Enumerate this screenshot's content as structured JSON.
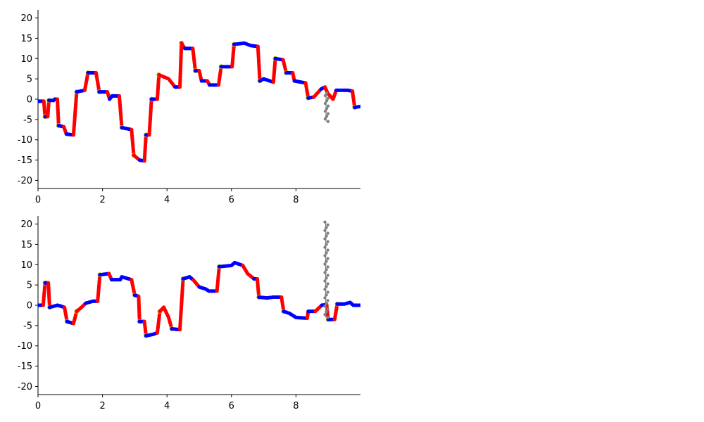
{
  "chart_data": [
    {
      "type": "scatter",
      "xlim": [
        0,
        10
      ],
      "ylim": [
        -22,
        22
      ],
      "x_ticks": [
        0,
        2,
        4,
        6,
        8
      ],
      "y_ticks": [
        -20,
        -15,
        -10,
        -5,
        0,
        5,
        10,
        15,
        20
      ],
      "grid": false,
      "series_colors": {
        "flat": "#0000ff",
        "transition": "#ff0000",
        "marker": "#bfbf00",
        "spike": "#808080"
      },
      "levels": [
        [
          0,
          -0.5
        ],
        [
          0.18,
          -0.5
        ],
        [
          0.22,
          -4.3
        ],
        [
          0.3,
          -4.3
        ],
        [
          0.34,
          -0.3
        ],
        [
          0.48,
          -0.3
        ],
        [
          0.52,
          0
        ],
        [
          0.6,
          0
        ],
        [
          0.64,
          -6.5
        ],
        [
          0.8,
          -6.8
        ],
        [
          0.88,
          -8.6
        ],
        [
          1.1,
          -8.8
        ],
        [
          1.2,
          1.8
        ],
        [
          1.45,
          2.2
        ],
        [
          1.55,
          6.5
        ],
        [
          1.8,
          6.5
        ],
        [
          1.9,
          1.8
        ],
        [
          2.15,
          1.8
        ],
        [
          2.22,
          0
        ],
        [
          2.3,
          0.8
        ],
        [
          2.52,
          0.8
        ],
        [
          2.6,
          -7
        ],
        [
          2.9,
          -7.5
        ],
        [
          2.97,
          -13.8
        ],
        [
          3.15,
          -15
        ],
        [
          3.3,
          -15.2
        ],
        [
          3.35,
          -8.8
        ],
        [
          3.45,
          -8.8
        ],
        [
          3.52,
          0
        ],
        [
          3.7,
          0
        ],
        [
          3.75,
          6
        ],
        [
          4.05,
          5
        ],
        [
          4.25,
          3
        ],
        [
          4.4,
          3
        ],
        [
          4.45,
          13.8
        ],
        [
          4.55,
          12.5
        ],
        [
          4.8,
          12.5
        ],
        [
          4.88,
          7
        ],
        [
          5.0,
          7
        ],
        [
          5.07,
          4.5
        ],
        [
          5.25,
          4.5
        ],
        [
          5.32,
          3.5
        ],
        [
          5.6,
          3.5
        ],
        [
          5.68,
          8
        ],
        [
          6.02,
          8
        ],
        [
          6.08,
          13.5
        ],
        [
          6.4,
          13.8
        ],
        [
          6.6,
          13.2
        ],
        [
          6.82,
          13
        ],
        [
          6.88,
          4.5
        ],
        [
          7.0,
          5
        ],
        [
          7.3,
          4.2
        ],
        [
          7.36,
          10
        ],
        [
          7.6,
          9.7
        ],
        [
          7.7,
          6.5
        ],
        [
          7.9,
          6.5
        ],
        [
          7.95,
          4.5
        ],
        [
          8.3,
          4
        ],
        [
          8.38,
          0.3
        ],
        [
          8.55,
          0.5
        ],
        [
          8.78,
          2.5
        ],
        [
          8.9,
          3
        ],
        [
          8.98,
          1.5
        ],
        [
          9.15,
          0
        ],
        [
          9.25,
          2.2
        ],
        [
          9.6,
          2.2
        ],
        [
          9.75,
          2
        ],
        [
          9.82,
          -2
        ],
        [
          10,
          -1.8
        ]
      ],
      "spike": {
        "x": 8.93,
        "y_min": -5.5,
        "y_max": 1.5
      }
    },
    {
      "type": "scatter",
      "xlim": [
        0,
        10
      ],
      "ylim": [
        -22,
        22
      ],
      "x_ticks": [
        0,
        2,
        4,
        6,
        8
      ],
      "y_ticks": [
        -20,
        -15,
        -10,
        -5,
        0,
        5,
        10,
        15,
        20
      ],
      "grid": false,
      "series_colors": {
        "flat": "#0000ff",
        "transition": "#ff0000",
        "marker": "#bfbf00",
        "spike": "#808080"
      },
      "levels": [
        [
          0,
          0
        ],
        [
          0.16,
          0
        ],
        [
          0.22,
          5.5
        ],
        [
          0.32,
          5.5
        ],
        [
          0.36,
          -0.5
        ],
        [
          0.6,
          0
        ],
        [
          0.7,
          -0.2
        ],
        [
          0.82,
          -0.5
        ],
        [
          0.9,
          -4
        ],
        [
          1.1,
          -4.5
        ],
        [
          1.2,
          -1.5
        ],
        [
          1.35,
          -0.5
        ],
        [
          1.48,
          0.5
        ],
        [
          1.7,
          1
        ],
        [
          1.85,
          1
        ],
        [
          1.92,
          7.5
        ],
        [
          2.2,
          7.8
        ],
        [
          2.28,
          6.3
        ],
        [
          2.55,
          6.3
        ],
        [
          2.6,
          7
        ],
        [
          2.9,
          6.3
        ],
        [
          3.0,
          2.5
        ],
        [
          3.12,
          2.2
        ],
        [
          3.15,
          -4
        ],
        [
          3.3,
          -4
        ],
        [
          3.35,
          -7.5
        ],
        [
          3.55,
          -7.2
        ],
        [
          3.7,
          -6.8
        ],
        [
          3.78,
          -1.5
        ],
        [
          3.9,
          -0.5
        ],
        [
          4.05,
          -3
        ],
        [
          4.15,
          -5.8
        ],
        [
          4.4,
          -6
        ],
        [
          4.5,
          6.5
        ],
        [
          4.7,
          7
        ],
        [
          4.82,
          6.2
        ],
        [
          5.0,
          4.5
        ],
        [
          5.2,
          4
        ],
        [
          5.3,
          3.5
        ],
        [
          5.55,
          3.5
        ],
        [
          5.62,
          9.5
        ],
        [
          6.0,
          9.8
        ],
        [
          6.1,
          10.5
        ],
        [
          6.35,
          9.8
        ],
        [
          6.5,
          7.8
        ],
        [
          6.7,
          6.5
        ],
        [
          6.8,
          6.5
        ],
        [
          6.85,
          2
        ],
        [
          7.1,
          1.8
        ],
        [
          7.3,
          2
        ],
        [
          7.55,
          2
        ],
        [
          7.62,
          -1.5
        ],
        [
          7.8,
          -2
        ],
        [
          7.9,
          -2.5
        ],
        [
          8.0,
          -3
        ],
        [
          8.35,
          -3.2
        ],
        [
          8.38,
          -1.5
        ],
        [
          8.6,
          -1.5
        ],
        [
          8.8,
          0
        ],
        [
          8.95,
          0.2
        ],
        [
          9.0,
          -3.5
        ],
        [
          9.2,
          -3.5
        ],
        [
          9.28,
          0.3
        ],
        [
          9.5,
          0.3
        ],
        [
          9.68,
          0.7
        ],
        [
          9.78,
          0
        ],
        [
          10,
          0
        ]
      ],
      "spike": {
        "x": 8.92,
        "y_min": -3,
        "y_max": 20.5
      }
    }
  ]
}
